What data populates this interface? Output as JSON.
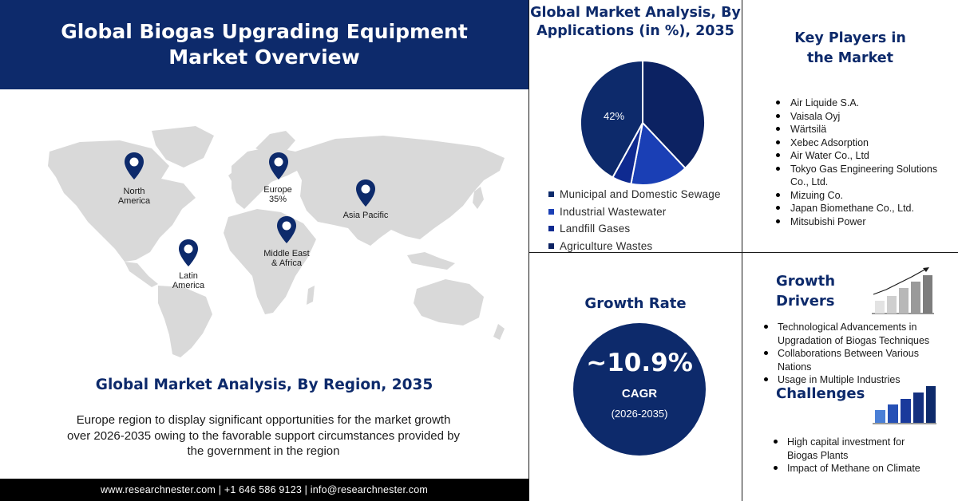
{
  "header": {
    "title": "Global Biogas Upgrading Equipment Market Overview"
  },
  "map": {
    "regions": [
      {
        "id": "north-america",
        "label": "North\nAmerica"
      },
      {
        "id": "europe",
        "label": "Europe\n35%"
      },
      {
        "id": "asia-pacific",
        "label": "Asia Pacific"
      },
      {
        "id": "middle-east-africa",
        "label": "Middle East\n& Africa"
      },
      {
        "id": "latin-america",
        "label": "Latin\nAmerica"
      }
    ],
    "colors": {
      "land": "#d9d9d9",
      "pin": "#0d2a6b"
    }
  },
  "region_section": {
    "heading": "Global Market Analysis, By Region, 2035",
    "description": "Europe region to display significant opportunities for the market growth over 2026-2035 owing to the favorable support circumstances provided by the government in the region"
  },
  "footer": {
    "text": "www.researchnester.com | +1 646 586 9123 | info@researchnester.com"
  },
  "chart_data": {
    "type": "pie",
    "title": "Global Market Analysis, By Applications (in %), 2035",
    "slices": [
      {
        "name": "Municipal and Domestic Sewage",
        "value": 42,
        "color": "#0d2a6b"
      },
      {
        "name": "Industrial Wastewater",
        "value": 15,
        "color": "#1a3fb5"
      },
      {
        "name": "Landfill Gases",
        "value": 5,
        "color": "#0f2a90"
      },
      {
        "name": "Agriculture Wastes",
        "value": 38,
        "color": "#0c2262"
      }
    ],
    "data_labels": [
      "42%"
    ],
    "legend_placement": "bottom"
  },
  "key_players": {
    "title": "Key Players in the Market",
    "items": [
      "Air Liquide S.A.",
      "Vaisala Oyj",
      "Wärtsilä",
      "Xebec Adsorption",
      "Air Water Co., Ltd",
      "Tokyo Gas Engineering Solutions Co., Ltd.",
      "Mizuing Co.",
      "Japan Biomethane Co., Ltd.",
      "Mitsubishi Power"
    ]
  },
  "growth_rate": {
    "title": "Growth Rate",
    "value": "~10.9%",
    "label": "CAGR",
    "period": "(2026-2035)"
  },
  "growth_drivers": {
    "title": "Growth Drivers",
    "items": [
      "Technological Advancements in Upgradation of Biogas Techniques",
      "Collaborations Between Various Nations",
      "Usage in Multiple Industries"
    ],
    "icon": "bar-chart-rising-icon"
  },
  "challenges": {
    "title": "Challenges",
    "items": [
      "High capital investment for Biogas Plants",
      "Impact of Methane on Climate"
    ],
    "icon": "bar-chart-rising-icon"
  },
  "colors": {
    "brand": "#0d2a6b",
    "text": "#1a1a1a",
    "footer": "#000000"
  }
}
